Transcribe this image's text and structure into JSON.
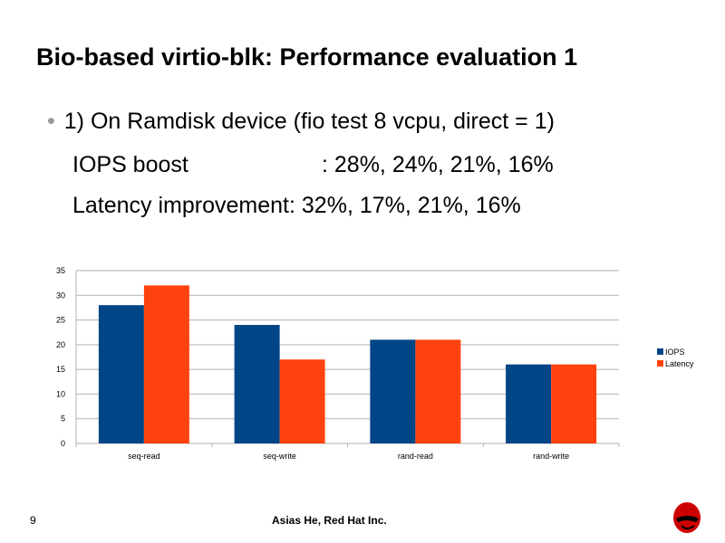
{
  "title": "Bio-based virtio-blk: Performance evaluation 1",
  "bullet": "1) On Ramdisk device (fio test 8 vcpu, direct = 1)",
  "lines": [
    {
      "label": "IOPS boost",
      "value": ": 28%, 24%, 21%, 16%"
    },
    {
      "label": "Latency improvement",
      "value": ": 32%, 17%, 21%, 16%"
    }
  ],
  "chart_data": {
    "type": "bar",
    "categories": [
      "seq-read",
      "seq-write",
      "rand-read",
      "rand-write"
    ],
    "series": [
      {
        "name": "IOPS",
        "values": [
          28,
          24,
          21,
          16
        ],
        "color": "#004586"
      },
      {
        "name": "Latency",
        "values": [
          32,
          17,
          21,
          16
        ],
        "color": "#ff420e"
      }
    ],
    "ylim": [
      0,
      35
    ],
    "yticks": [
      0,
      5,
      10,
      15,
      20,
      25,
      30,
      35
    ],
    "grid": true,
    "legend": "right"
  },
  "footer": {
    "page": "9",
    "author": "Asias  He, Red Hat Inc."
  }
}
